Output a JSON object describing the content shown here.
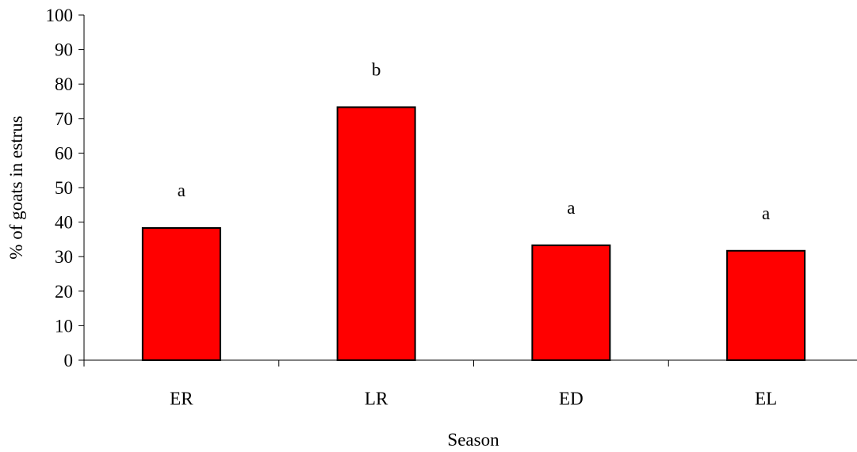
{
  "chart_data": {
    "type": "bar",
    "title": "",
    "xlabel": "Season",
    "ylabel": "% of goats in estrus",
    "categories": [
      "ER",
      "LR",
      "ED",
      "EL"
    ],
    "values": [
      38.3,
      73.3,
      33.3,
      31.7
    ],
    "annotations": [
      "a",
      "b",
      "a",
      "a"
    ],
    "ylim": [
      0,
      100
    ],
    "yticks": [
      "0",
      "10",
      "20",
      "30",
      "40",
      "50",
      "60",
      "70",
      "80",
      "90",
      "100"
    ],
    "grid": false,
    "legend": "none",
    "colors": {
      "bar_fill": "#ff0000",
      "bar_stroke": "#000000",
      "axis": "#000000"
    }
  }
}
